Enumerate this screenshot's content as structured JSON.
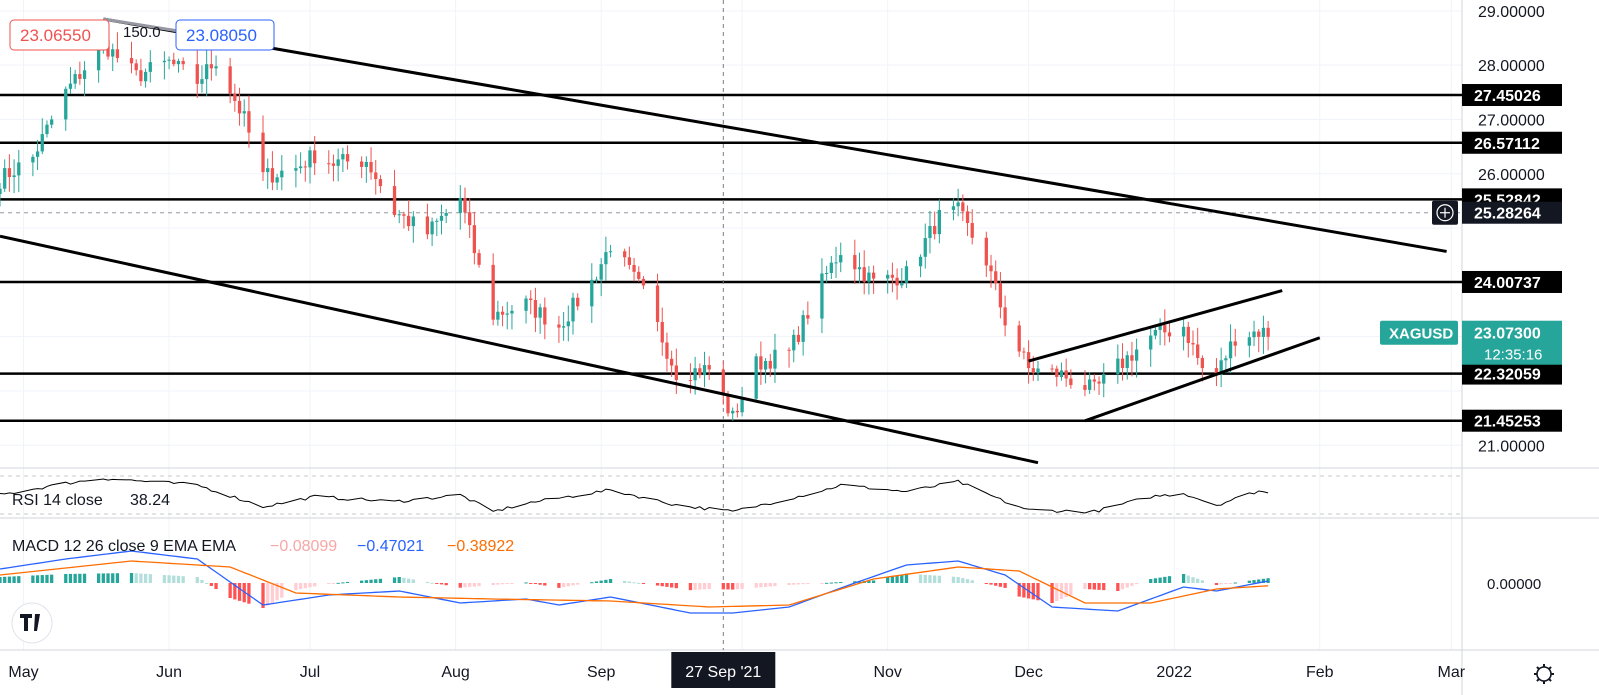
{
  "symbol": "XAGUSD",
  "header": {
    "bid": "23.06550",
    "ask": "23.08050",
    "spread": "150.0"
  },
  "colors": {
    "up": "#26a69a",
    "down": "#ef5350",
    "level_line": "#000000",
    "rsi_line": "#000000",
    "macd_line": "#2962ff",
    "signal_line": "#ff6d00",
    "hist_up_strong": "#26a69a",
    "hist_up_weak": "#b2dfdb",
    "hist_down_strong": "#ff5252",
    "hist_down_weak": "#ffcdd2",
    "symbol_badge": "#26a69a"
  },
  "chart_data": {
    "type": "candlestick",
    "timeframe": "daily",
    "x_range": [
      "2021-04-26",
      "2022-03-02"
    ],
    "y_range": [
      20.6,
      29.2
    ],
    "y_ticks": [
      "21.00000",
      "26.00000",
      "27.00000",
      "28.00000",
      "29.00000"
    ],
    "x_tick_labels": [
      "May",
      "Jun",
      "Jul",
      "Aug",
      "Sep",
      "Nov",
      "Dec",
      "2022",
      "Feb",
      "Mar"
    ],
    "crosshair_date_label": "27 Sep '21",
    "price_levels": [
      {
        "label": "27.45026",
        "value": 27.45026
      },
      {
        "label": "26.57112",
        "value": 26.57112
      },
      {
        "label": "25.52842",
        "value": 25.52842
      },
      {
        "label": "24.00737",
        "value": 24.00737
      },
      {
        "label": "22.32059",
        "value": 22.32059
      },
      {
        "label": "21.45253",
        "value": 21.45253
      }
    ],
    "crosshair_price_label": "25.28264",
    "last_price": {
      "label": "23.07300",
      "value": 23.073,
      "countdown": "12:35:16"
    },
    "trendlines": [
      {
        "from": [
          "2021-05-18",
          28.85
        ],
        "to": [
          "2022-02-28",
          24.57
        ]
      },
      {
        "from": [
          "2021-04-26",
          24.85
        ],
        "to": [
          "2021-12-03",
          20.68
        ]
      },
      {
        "from": [
          "2021-12-01",
          22.55
        ],
        "to": [
          "2022-01-24",
          23.85
        ]
      },
      {
        "from": [
          "2021-12-13",
          21.45
        ],
        "to": [
          "2022-02-01",
          22.98
        ]
      }
    ],
    "pivots": [
      [
        "2021-04-26",
        25.9
      ],
      [
        "2021-05-03",
        26.3
      ],
      [
        "2021-05-10",
        27.5
      ],
      [
        "2021-05-18",
        28.4
      ],
      [
        "2021-05-25",
        27.8
      ],
      [
        "2021-06-01",
        28.05
      ],
      [
        "2021-06-07",
        27.7
      ],
      [
        "2021-06-11",
        28.1
      ],
      [
        "2021-06-17",
        27.0
      ],
      [
        "2021-06-21",
        25.95
      ],
      [
        "2021-06-28",
        26.1
      ],
      [
        "2021-07-02",
        26.35
      ],
      [
        "2021-07-06",
        26.2
      ],
      [
        "2021-07-13",
        26.25
      ],
      [
        "2021-07-16",
        25.8
      ],
      [
        "2021-07-19",
        25.3
      ],
      [
        "2021-07-26",
        24.9
      ],
      [
        "2021-08-02",
        25.55
      ],
      [
        "2021-08-06",
        24.25
      ],
      [
        "2021-08-09",
        23.4
      ],
      [
        "2021-08-16",
        23.6
      ],
      [
        "2021-08-23",
        23.2
      ],
      [
        "2021-08-30",
        24.0
      ],
      [
        "2021-09-03",
        24.7
      ],
      [
        "2021-09-10",
        23.8
      ],
      [
        "2021-09-17",
        22.35
      ],
      [
        "2021-09-24",
        22.4
      ],
      [
        "2021-09-29",
        21.5
      ],
      [
        "2021-10-04",
        22.5
      ],
      [
        "2021-10-11",
        22.7
      ],
      [
        "2021-10-18",
        24.0
      ],
      [
        "2021-10-22",
        24.6
      ],
      [
        "2021-10-29",
        24.0
      ],
      [
        "2021-11-05",
        24.15
      ],
      [
        "2021-11-12",
        25.2
      ],
      [
        "2021-11-16",
        25.3
      ],
      [
        "2021-11-22",
        24.4
      ],
      [
        "2021-11-26",
        23.3
      ],
      [
        "2021-12-01",
        22.4
      ],
      [
        "2021-12-08",
        22.3
      ],
      [
        "2021-12-15",
        22.0
      ],
      [
        "2021-12-20",
        22.45
      ],
      [
        "2021-12-27",
        23.0
      ],
      [
        "2022-01-03",
        23.2
      ],
      [
        "2022-01-07",
        22.4
      ],
      [
        "2022-01-10",
        22.3
      ],
      [
        "2022-01-14",
        23.0
      ],
      [
        "2022-01-19",
        23.1
      ],
      [
        "2022-01-21",
        23.07
      ]
    ],
    "rsi": {
      "label": "RSI 14 close",
      "value": "38.24",
      "pivots": [
        [
          "2021-04-26",
          50
        ],
        [
          "2021-05-10",
          64
        ],
        [
          "2021-05-18",
          70
        ],
        [
          "2021-06-07",
          62
        ],
        [
          "2021-06-21",
          36
        ],
        [
          "2021-07-02",
          48
        ],
        [
          "2021-07-19",
          42
        ],
        [
          "2021-08-02",
          50
        ],
        [
          "2021-08-09",
          30
        ],
        [
          "2021-08-16",
          40
        ],
        [
          "2021-09-03",
          56
        ],
        [
          "2021-09-17",
          38
        ],
        [
          "2021-09-29",
          30
        ],
        [
          "2021-10-18",
          55
        ],
        [
          "2021-10-22",
          62
        ],
        [
          "2021-11-05",
          54
        ],
        [
          "2021-11-16",
          66
        ],
        [
          "2021-11-26",
          42
        ],
        [
          "2021-12-01",
          32
        ],
        [
          "2021-12-15",
          30
        ],
        [
          "2021-12-27",
          48
        ],
        [
          "2022-01-03",
          52
        ],
        [
          "2022-01-10",
          38
        ],
        [
          "2022-01-19",
          55
        ],
        [
          "2022-01-21",
          52
        ]
      ]
    },
    "macd": {
      "label": "MACD 12 26 close 9 EMA EMA",
      "values": [
        "−0.08099",
        "−0.47021",
        "−0.38922"
      ],
      "zero_label": "0.00000",
      "macd_pivots": [
        [
          "2021-04-26",
          0.35
        ],
        [
          "2021-05-10",
          0.6
        ],
        [
          "2021-05-24",
          0.8
        ],
        [
          "2021-06-07",
          0.6
        ],
        [
          "2021-06-21",
          -0.55
        ],
        [
          "2021-07-05",
          -0.3
        ],
        [
          "2021-07-20",
          -0.2
        ],
        [
          "2021-08-02",
          -0.5
        ],
        [
          "2021-08-16",
          -0.4
        ],
        [
          "2021-08-23",
          -0.55
        ],
        [
          "2021-09-03",
          -0.35
        ],
        [
          "2021-09-20",
          -0.75
        ],
        [
          "2021-09-29",
          -0.75
        ],
        [
          "2021-10-11",
          -0.6
        ],
        [
          "2021-10-25",
          0.0
        ],
        [
          "2021-11-05",
          0.45
        ],
        [
          "2021-11-16",
          0.55
        ],
        [
          "2021-11-26",
          0.2
        ],
        [
          "2021-12-06",
          -0.6
        ],
        [
          "2021-12-20",
          -0.7
        ],
        [
          "2022-01-03",
          -0.1
        ],
        [
          "2022-01-10",
          -0.2
        ],
        [
          "2022-01-21",
          0.05
        ]
      ],
      "signal_pivots": [
        [
          "2021-04-26",
          0.2
        ],
        [
          "2021-05-24",
          0.55
        ],
        [
          "2021-06-14",
          0.4
        ],
        [
          "2021-06-28",
          -0.25
        ],
        [
          "2021-07-20",
          -0.35
        ],
        [
          "2021-08-09",
          -0.4
        ],
        [
          "2021-09-03",
          -0.45
        ],
        [
          "2021-09-24",
          -0.6
        ],
        [
          "2021-10-11",
          -0.55
        ],
        [
          "2021-10-29",
          0.1
        ],
        [
          "2021-11-16",
          0.4
        ],
        [
          "2021-11-29",
          0.3
        ],
        [
          "2021-12-13",
          -0.5
        ],
        [
          "2021-12-27",
          -0.5
        ],
        [
          "2022-01-10",
          -0.15
        ],
        [
          "2022-01-21",
          -0.07
        ]
      ]
    }
  }
}
